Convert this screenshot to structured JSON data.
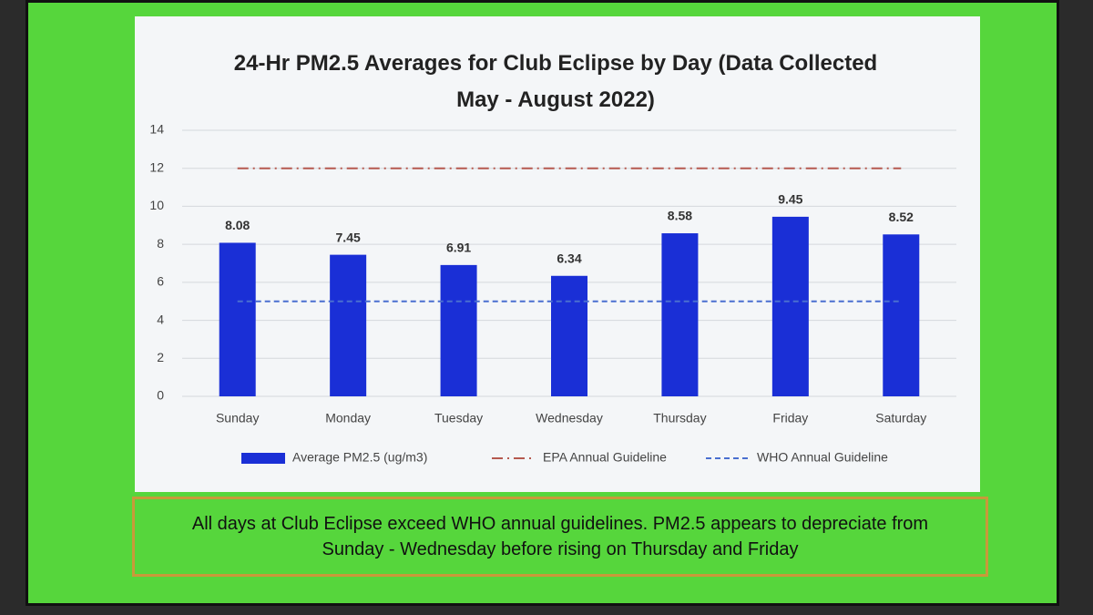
{
  "chart_data": {
    "type": "bar",
    "title": "24-Hr PM2.5 Averages for Club Eclipse by Day (Data Collected May - August 2022)",
    "categories": [
      "Sunday",
      "Monday",
      "Tuesday",
      "Wednesday",
      "Thursday",
      "Friday",
      "Saturday"
    ],
    "series": [
      {
        "name": "Average PM2.5 (ug/m3)",
        "type": "bar",
        "color": "#1a2fd6",
        "values": [
          8.08,
          7.45,
          6.91,
          6.34,
          8.58,
          9.45,
          8.52
        ]
      },
      {
        "name": "EPA Annual Guideline",
        "type": "line",
        "line_style": "dash-dot",
        "color": "#b5594f",
        "values": [
          12,
          12,
          12,
          12,
          12,
          12,
          12
        ]
      },
      {
        "name": "WHO Annual Guideline",
        "type": "line",
        "line_style": "dash",
        "color": "#4a6fd0",
        "values": [
          5,
          5,
          5,
          5,
          5,
          5,
          5
        ]
      }
    ],
    "ylim": [
      0,
      14
    ],
    "yticks": [
      0,
      2,
      4,
      6,
      8,
      10,
      12,
      14
    ],
    "grid": true,
    "legend": "bottom",
    "annotation": "All days at Club Eclipse exceed WHO annual guidelines. PM2.5 appears to depreciate from Sunday - Wednesday before rising on Thursday and Friday"
  }
}
